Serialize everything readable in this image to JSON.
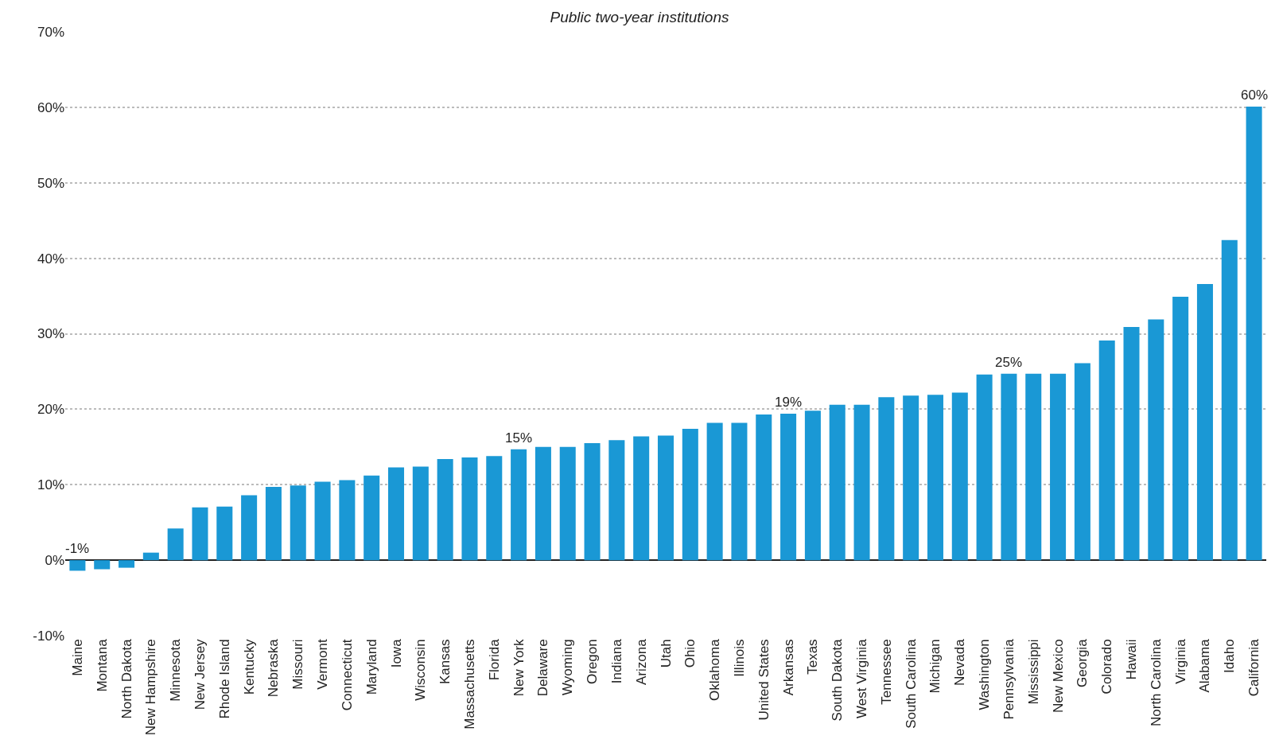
{
  "chart_data": {
    "type": "bar",
    "title": "Public two-year institutions",
    "categories": [
      "Maine",
      "Montana",
      "North Dakota",
      "New Hampshire",
      "Minnesota",
      "New Jersey",
      "Rhode Island",
      "Kentucky",
      "Nebraska",
      "Missouri",
      "Vermont",
      "Connecticut",
      "Maryland",
      "Iowa",
      "Wisconsin",
      "Kansas",
      "Massachusetts",
      "Florida",
      "New York",
      "Delaware",
      "Wyoming",
      "Oregon",
      "Indiana",
      "Arizona",
      "Utah",
      "Ohio",
      "Oklahoma",
      "Illinois",
      "United States",
      "Arkansas",
      "Texas",
      "South Dakota",
      "West Virginia",
      "Tennessee",
      "South Carolina",
      "Michigan",
      "Nevada",
      "Washington",
      "Pennsylvania",
      "Mississippi",
      "New Mexico",
      "Georgia",
      "Colorado",
      "Hawaii",
      "North Carolina",
      "Virginia",
      "Alabama",
      "Idaho",
      "California"
    ],
    "values": [
      -1.4,
      -1.2,
      -1.0,
      1.0,
      4.2,
      7.0,
      7.1,
      8.6,
      9.7,
      9.9,
      10.4,
      10.6,
      11.2,
      12.3,
      12.4,
      13.4,
      13.6,
      13.8,
      14.7,
      15.0,
      15.0,
      15.5,
      15.9,
      16.4,
      16.5,
      17.4,
      18.2,
      18.2,
      19.3,
      19.4,
      19.8,
      20.6,
      20.6,
      21.6,
      21.8,
      21.9,
      22.2,
      24.6,
      24.7,
      24.7,
      24.7,
      26.1,
      29.1,
      30.9,
      31.9,
      34.9,
      36.6,
      42.4,
      60.1
    ],
    "value_labels": [
      "-1%",
      null,
      null,
      null,
      null,
      null,
      null,
      null,
      null,
      null,
      null,
      null,
      null,
      null,
      null,
      null,
      null,
      null,
      "15%",
      null,
      null,
      null,
      null,
      null,
      null,
      null,
      null,
      null,
      null,
      "19%",
      null,
      null,
      null,
      null,
      null,
      null,
      null,
      null,
      "25%",
      null,
      null,
      null,
      null,
      null,
      null,
      null,
      null,
      null,
      "60%"
    ],
    "color": "#1a98d5",
    "ylim": [
      -10,
      70
    ],
    "yticks": [
      {
        "value": -10,
        "label": "-10%"
      },
      {
        "value": 0,
        "label": "0%"
      },
      {
        "value": 10,
        "label": "10%"
      },
      {
        "value": 20,
        "label": "20%"
      },
      {
        "value": 30,
        "label": "30%"
      },
      {
        "value": 40,
        "label": "40%"
      },
      {
        "value": 50,
        "label": "50%"
      },
      {
        "value": 60,
        "label": "60%"
      },
      {
        "value": 70,
        "label": "70%"
      }
    ],
    "grid": "y"
  }
}
